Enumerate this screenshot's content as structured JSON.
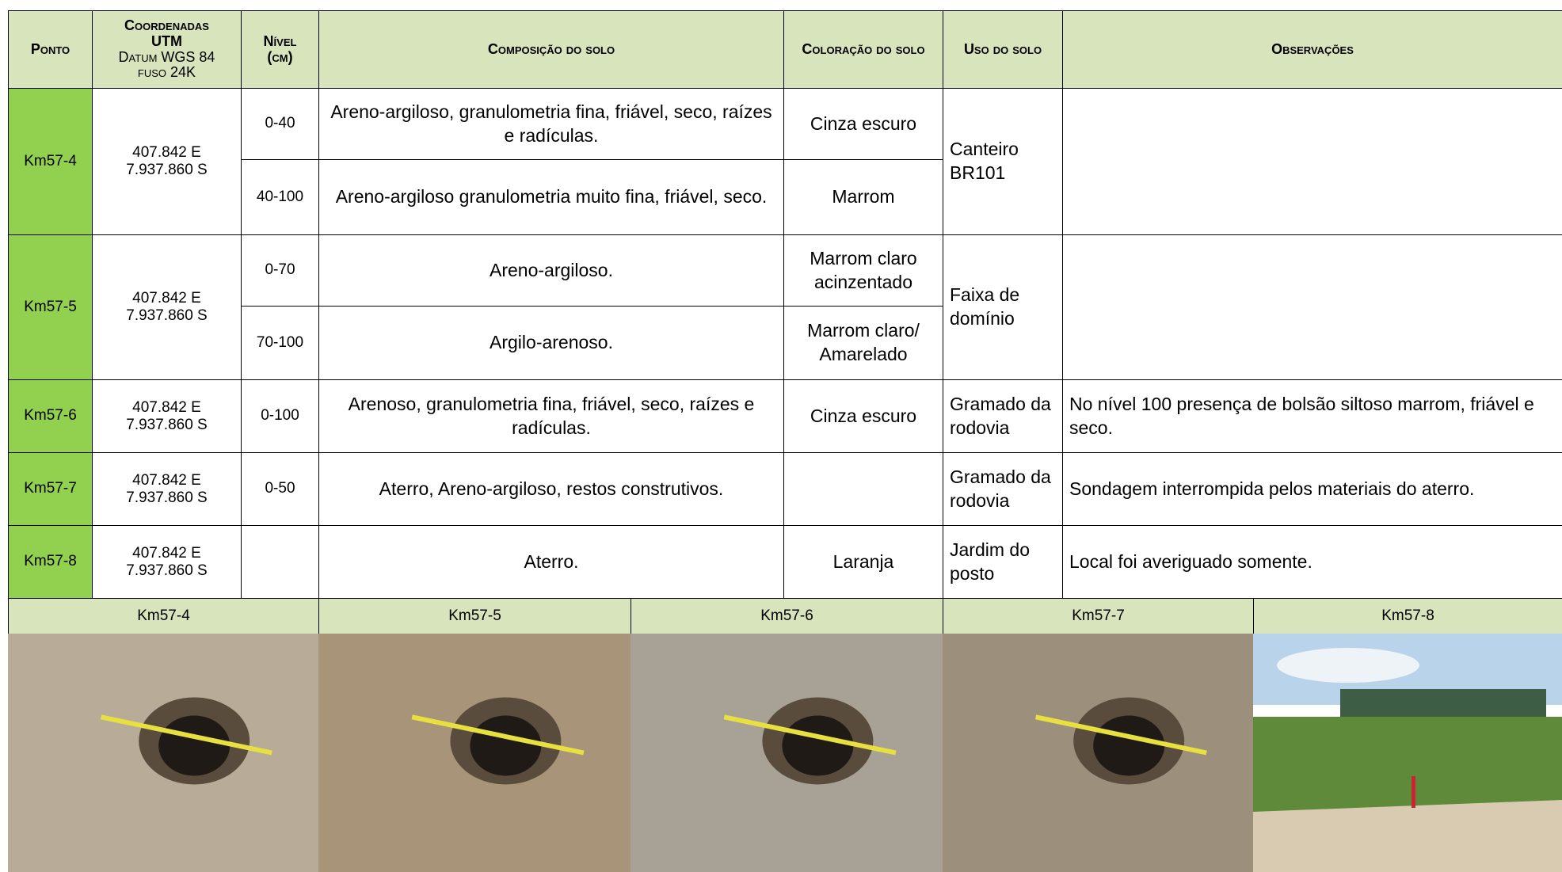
{
  "header": {
    "ponto": "Ponto",
    "coordenadas": "Coordenadas",
    "utm": "UTM",
    "datum": "Datum WGS 84",
    "fuso": "fuso 24K",
    "nivel": "Nível",
    "nivel_unit": "(cm)",
    "composicao": "Composição do solo",
    "coloracao": "Coloração do solo",
    "uso": "Uso do solo",
    "observacoes": "Observações"
  },
  "rows": [
    {
      "ponto": "Km57-4",
      "coord_e": "407.842 E",
      "coord_s": "7.937.860 S",
      "uso": "Canteiro BR101",
      "layers": [
        {
          "nivel": "0-40",
          "composicao": "Areno-argiloso, granulometria fina, friável, seco, raízes e radículas.",
          "coloracao": "Cinza escuro"
        },
        {
          "nivel": "40-100",
          "composicao": "Areno-argiloso granulometria muito fina, friável, seco.",
          "coloracao": "Marrom"
        }
      ]
    },
    {
      "ponto": "Km57-5",
      "coord_e": "407.842 E",
      "coord_s": "7.937.860 S",
      "uso": "Faixa de domínio",
      "layers": [
        {
          "nivel": "0-70",
          "composicao": "Areno-argiloso.",
          "coloracao": "Marrom claro acinzentado"
        },
        {
          "nivel": "70-100",
          "composicao": "Argilo-arenoso.",
          "coloracao": "Marrom claro/ Amarelado"
        }
      ]
    },
    {
      "ponto": "Km57-6",
      "coord_e": "407.842 E",
      "coord_s": "7.937.860 S",
      "uso": "Gramado da rodovia",
      "observacoes": "No nível 100 presença de bolsão siltoso marrom, friável e seco.",
      "layers": [
        {
          "nivel": "0-100",
          "composicao": "Arenoso, granulometria fina, friável, seco, raízes e radículas.",
          "coloracao": "Cinza escuro"
        }
      ]
    },
    {
      "ponto": "Km57-7",
      "coord_e": "407.842 E",
      "coord_s": "7.937.860 S",
      "uso": "Gramado da rodovia",
      "observacoes": "Sondagem interrompida pelos materiais do aterro.",
      "layers": [
        {
          "nivel": "0-50",
          "composicao": "Aterro, Areno-argiloso, restos construtivos."
        }
      ]
    },
    {
      "ponto": "Km57-8",
      "coord_e": "407.842 E",
      "coord_s": "7.937.860 S",
      "uso": "Jardim do posto",
      "observacoes": "Local foi averiguado somente.",
      "layers": [
        {
          "composicao": "Aterro.",
          "coloracao": "Laranja"
        }
      ]
    }
  ],
  "photos": [
    "Km57-4",
    "Km57-5",
    "Km57-6",
    "Km57-7",
    "Km57-8"
  ]
}
